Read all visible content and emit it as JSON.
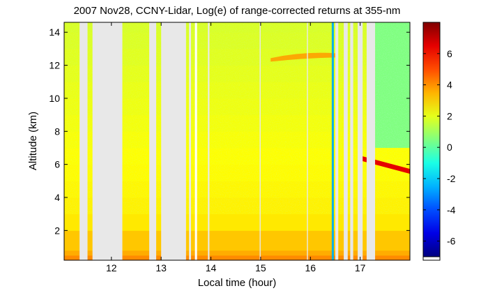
{
  "chart_data": {
    "type": "heatmap",
    "title": "2007 Nov28, CCNY-Lidar, Log(e) of range-corrected returns at 355-nm",
    "xlabel": "Local time (hour)",
    "ylabel": "Altitude (km)",
    "xlim": [
      11.05,
      18.0
    ],
    "ylim": [
      0.2,
      14.6
    ],
    "x_ticks": [
      12,
      13,
      14,
      15,
      16,
      17
    ],
    "y_ticks": [
      2,
      4,
      6,
      8,
      10,
      12,
      14
    ],
    "x_tick_labels": [
      "12",
      "13",
      "14",
      "15",
      "16",
      "17"
    ],
    "y_tick_labels": [
      "2",
      "4",
      "6",
      "8",
      "10",
      "12",
      "14"
    ],
    "colorbar": {
      "range": [
        -7,
        8
      ],
      "ticks": [
        -6,
        -4,
        -2,
        0,
        2,
        4,
        6
      ],
      "tick_labels": [
        "-6",
        "-4",
        "-2",
        "0",
        "2",
        "4",
        "6"
      ],
      "colormap": "jet"
    },
    "no_data_color": "#e8e8e8",
    "data_gaps": [
      [
        11.36,
        11.52
      ],
      [
        11.62,
        12.22
      ],
      [
        12.76,
        12.9
      ],
      [
        13.0,
        13.5
      ],
      [
        13.56,
        13.6
      ],
      [
        13.94,
        13.97
      ],
      [
        14.98,
        15.0
      ],
      [
        15.93,
        15.95
      ],
      [
        16.5,
        16.56
      ],
      [
        16.67,
        16.75
      ],
      [
        16.8,
        16.86
      ],
      [
        16.95,
        17.05
      ],
      [
        17.13,
        17.3
      ]
    ],
    "thin_lines": [
      {
        "x": 13.7,
        "color": "#ffffff"
      },
      {
        "x": 16.45,
        "color": "#00b0e8"
      }
    ],
    "features": [
      {
        "label": "planetary boundary layer",
        "x_range": [
          11.05,
          18.0
        ],
        "altitude_top_km": 2.0,
        "value": 4.0
      },
      {
        "label": "cirrus layer",
        "x_range": [
          15.2,
          16.5
        ],
        "altitude_km": 12.6,
        "value": 3.8
      },
      {
        "label": "thick cloud layer",
        "x_range": [
          17.0,
          18.0
        ],
        "altitude_km": [
          6.4,
          5.6
        ],
        "value": 6.5
      },
      {
        "label": "attenuated signal above cloud",
        "x_range": [
          17.3,
          18.0
        ],
        "altitude_range_km": [
          7.0,
          14.6
        ],
        "value": 0.5
      }
    ]
  }
}
